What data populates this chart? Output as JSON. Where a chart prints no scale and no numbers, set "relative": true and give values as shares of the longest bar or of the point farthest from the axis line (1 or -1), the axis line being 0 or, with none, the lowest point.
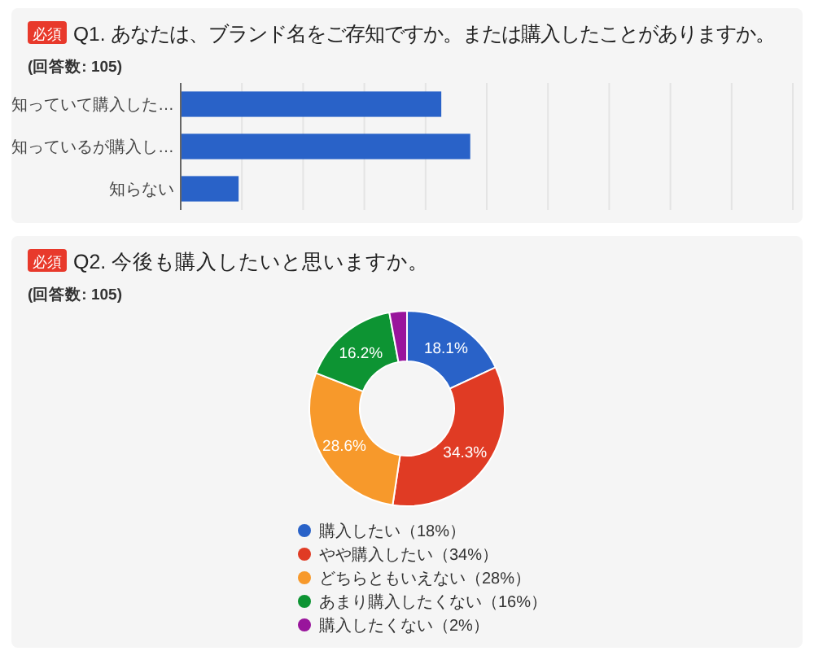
{
  "chart_data": [
    {
      "type": "bar",
      "orientation": "horizontal",
      "relative": true,
      "title": "Q1. あなたは、ブランド名をご存知ですか。または購入したことがありますか。",
      "subtitle": "(回答数: 105)",
      "annotations": [
        "必須"
      ],
      "categories": [
        "知っていて購入した…",
        "知っているが購入し…",
        "知らない"
      ],
      "values": [
        0.9,
        1,
        0.2
      ],
      "color": "#2962c8",
      "grid": "x"
    },
    {
      "type": "donut",
      "title": "Q2. 今後も購入したいと思いますか。",
      "subtitle": "(回答数: 105)",
      "annotations": [
        "必須"
      ],
      "categories": [
        "購入したい（18%）",
        "やや購入したい（34%）",
        "どちらともいえない（28%）",
        "あまり購入したくない（16%）",
        "購入したくない（2%）"
      ],
      "values": [
        18.1,
        34.3,
        28.6,
        16.2,
        2.9
      ],
      "colors": [
        "#2962c8",
        "#e03b24",
        "#f7992b",
        "#0d9433",
        "#99159c"
      ],
      "value_labels": [
        "18.1%",
        "34.3%",
        "28.6%",
        "16.2%",
        null
      ],
      "legend": "bottom"
    }
  ]
}
